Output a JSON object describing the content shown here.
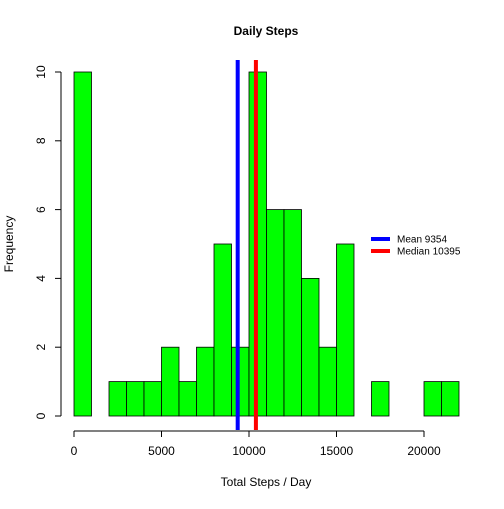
{
  "chart_data": {
    "type": "histogram",
    "title": "Daily Steps",
    "xlabel": "Total Steps / Day",
    "ylabel": "Frequency",
    "xlim": [
      0,
      22000
    ],
    "ylim": [
      0,
      10
    ],
    "xticks": [
      "0",
      "5000",
      "10000",
      "15000",
      "20000"
    ],
    "xtick_values": [
      0,
      5000,
      10000,
      15000,
      20000
    ],
    "yticks": [
      "0",
      "2",
      "4",
      "6",
      "8",
      "10"
    ],
    "ytick_values": [
      0,
      2,
      4,
      6,
      8,
      10
    ],
    "bin_width": 1000,
    "bins": [
      {
        "x0": 0,
        "x1": 1000,
        "count": 10
      },
      {
        "x0": 1000,
        "x1": 2000,
        "count": 0
      },
      {
        "x0": 2000,
        "x1": 3000,
        "count": 1
      },
      {
        "x0": 3000,
        "x1": 4000,
        "count": 1
      },
      {
        "x0": 4000,
        "x1": 5000,
        "count": 1
      },
      {
        "x0": 5000,
        "x1": 6000,
        "count": 2
      },
      {
        "x0": 6000,
        "x1": 7000,
        "count": 1
      },
      {
        "x0": 7000,
        "x1": 8000,
        "count": 2
      },
      {
        "x0": 8000,
        "x1": 9000,
        "count": 5
      },
      {
        "x0": 9000,
        "x1": 10000,
        "count": 2
      },
      {
        "x0": 10000,
        "x1": 11000,
        "count": 10
      },
      {
        "x0": 11000,
        "x1": 12000,
        "count": 6
      },
      {
        "x0": 12000,
        "x1": 13000,
        "count": 6
      },
      {
        "x0": 13000,
        "x1": 14000,
        "count": 4
      },
      {
        "x0": 14000,
        "x1": 15000,
        "count": 2
      },
      {
        "x0": 15000,
        "x1": 16000,
        "count": 5
      },
      {
        "x0": 16000,
        "x1": 17000,
        "count": 0
      },
      {
        "x0": 17000,
        "x1": 18000,
        "count": 1
      },
      {
        "x0": 18000,
        "x1": 19000,
        "count": 0
      },
      {
        "x0": 19000,
        "x1": 20000,
        "count": 0
      },
      {
        "x0": 20000,
        "x1": 21000,
        "count": 1
      },
      {
        "x0": 21000,
        "x1": 22000,
        "count": 1
      }
    ],
    "bar_color": "#00ff00",
    "bar_border_color": "#000000",
    "reference_lines": [
      {
        "label": "Mean  9354",
        "value": 9354,
        "color": "#0000ff"
      },
      {
        "label": "Median  10395",
        "value": 10395,
        "color": "#ff0000"
      }
    ],
    "legend_placement": "right",
    "grid": false
  }
}
